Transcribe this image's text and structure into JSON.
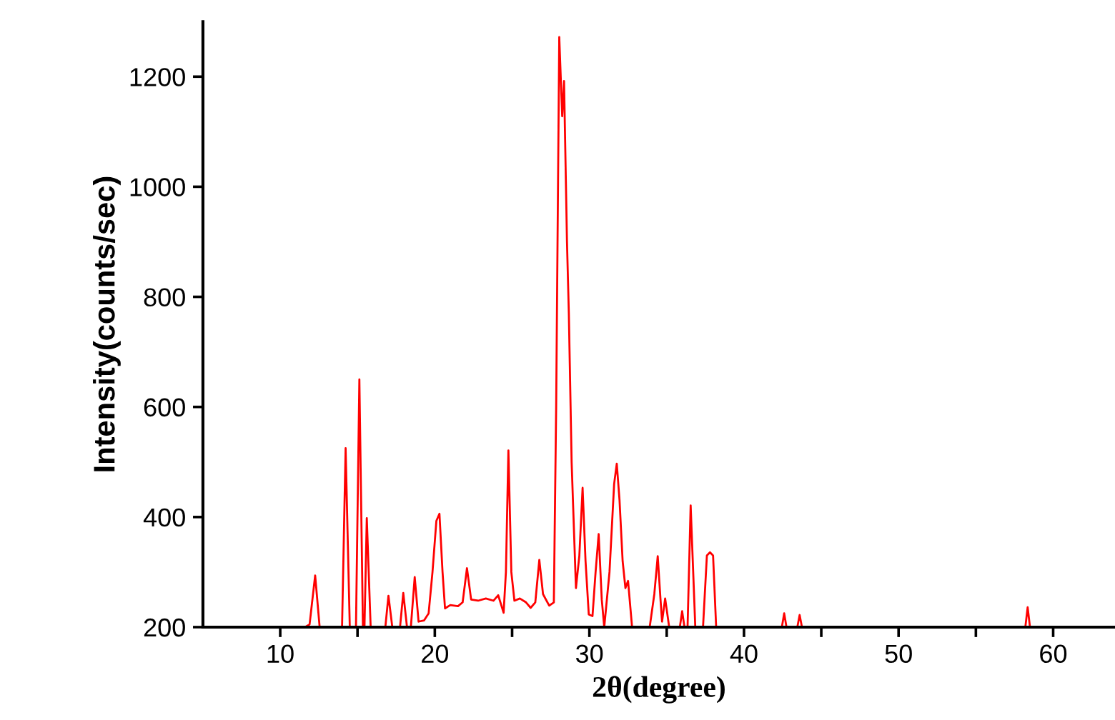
{
  "chart_data": {
    "type": "line",
    "xlabel": "2θ(degree)",
    "ylabel": "Intensity(counts/sec)",
    "xlim": [
      5,
      64
    ],
    "ylim": [
      200,
      1300
    ],
    "xticks": [
      10,
      {
        "value": 15,
        "label": null
      },
      20,
      {
        "value": 25,
        "label": null
      },
      30,
      {
        "value": 35,
        "label": null
      },
      40,
      {
        "value": 45,
        "label": null
      },
      50,
      {
        "value": 55,
        "label": null
      },
      60
    ],
    "yticks": [
      200,
      400,
      600,
      800,
      1000,
      1200
    ],
    "grid": false,
    "legend": false,
    "marker": "none",
    "line_style": "solid",
    "series": [
      {
        "color": "#ff0000",
        "x": [
          11.6,
          11.9,
          12.26,
          12.55,
          13.0,
          14.0,
          14.23,
          14.5,
          14.7,
          14.9,
          15.12,
          15.35,
          15.45,
          15.6,
          15.85,
          16.3,
          16.8,
          17.0,
          17.25,
          17.5,
          17.75,
          17.96,
          18.2,
          18.45,
          18.7,
          18.95,
          19.3,
          19.6,
          19.85,
          20.1,
          20.3,
          20.5,
          20.66,
          21.0,
          21.5,
          21.8,
          22.08,
          22.35,
          22.8,
          23.3,
          23.8,
          24.1,
          24.45,
          24.6,
          24.76,
          24.95,
          25.15,
          25.5,
          25.9,
          26.2,
          26.5,
          26.76,
          27.0,
          27.4,
          27.7,
          27.85,
          28.05,
          28.24,
          28.36,
          28.55,
          28.67,
          28.85,
          29.13,
          29.35,
          29.56,
          29.75,
          29.96,
          30.2,
          30.4,
          30.6,
          30.8,
          30.96,
          31.3,
          31.6,
          31.77,
          31.95,
          32.15,
          32.33,
          32.5,
          32.76,
          33.3,
          33.9,
          34.2,
          34.42,
          34.6,
          34.7,
          34.9,
          35.16,
          35.7,
          35.85,
          36.0,
          36.15,
          36.35,
          36.55,
          36.85,
          37.1,
          37.35,
          37.6,
          37.8,
          38.0,
          38.2,
          41.3,
          42.45,
          42.6,
          42.75,
          43.1,
          43.45,
          43.6,
          43.75,
          51.0,
          58.2,
          58.35,
          58.5
        ],
        "values": [
          200,
          205,
          294,
          200,
          null,
          200,
          525,
          200,
          null,
          200,
          650,
          200,
          200,
          398,
          200,
          null,
          200,
          257,
          200,
          null,
          200,
          262,
          200,
          200,
          291,
          210,
          212,
          225,
          300,
          393,
          406,
          300,
          234,
          240,
          238,
          245,
          307,
          250,
          248,
          252,
          248,
          258,
          226,
          300,
          521,
          300,
          248,
          252,
          245,
          235,
          245,
          322,
          260,
          239,
          245,
          600,
          1272,
          1128,
          1192,
          900,
          770,
          500,
          271,
          330,
          453,
          320,
          223,
          220,
          300,
          369,
          250,
          200,
          300,
          460,
          497,
          430,
          320,
          271,
          284,
          200,
          null,
          200,
          260,
          329,
          250,
          210,
          252,
          200,
          null,
          200,
          229,
          200,
          200,
          421,
          200,
          null,
          200,
          330,
          336,
          330,
          200,
          null,
          200,
          225,
          200,
          null,
          200,
          222,
          200,
          null,
          200,
          236,
          200
        ]
      }
    ]
  }
}
